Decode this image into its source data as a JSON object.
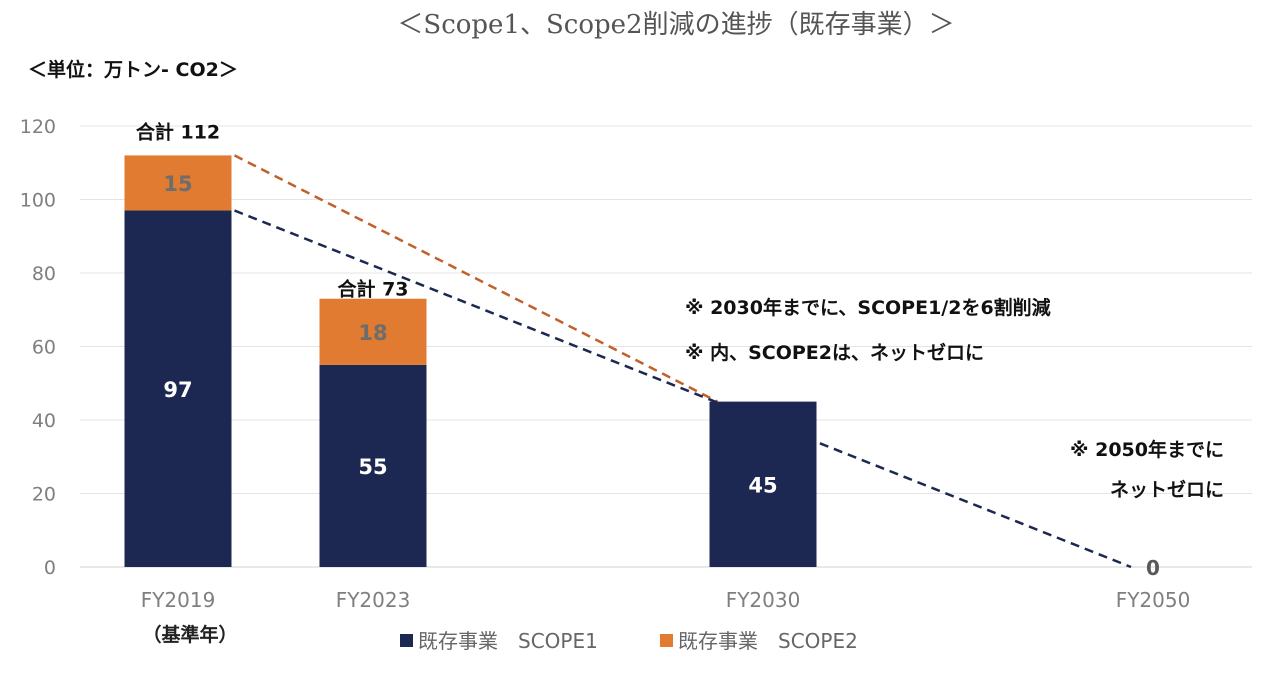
{
  "chart_data": {
    "type": "bar",
    "stacked": true,
    "title": "＜Scope1、Scope2削減の進捗（既存事業）＞",
    "unit_label": "＜単位：万トン- CO2＞",
    "categories": [
      "FY2019",
      "FY2023",
      "FY2030",
      "FY2050"
    ],
    "category_sublabels": [
      "（基準年）",
      "",
      "",
      ""
    ],
    "series": [
      {
        "name": "既存事業　SCOPE1",
        "color": "#1c2851",
        "values": [
          97,
          55,
          45,
          0
        ]
      },
      {
        "name": "既存事業　SCOPE2",
        "color": "#e07b31",
        "values": [
          15,
          18,
          0,
          0
        ]
      }
    ],
    "data_labels": {
      "scope1": [
        "97",
        "55",
        "45",
        "0"
      ],
      "scope2": [
        "15",
        "18",
        "",
        ""
      ]
    },
    "totals": [
      "合計 112",
      "合計 73",
      "",
      ""
    ],
    "ylim": [
      0,
      120
    ],
    "yticks": [
      0,
      20,
      40,
      60,
      80,
      100,
      120
    ],
    "grid": true,
    "legend_position": "bottom",
    "trend_lines": [
      {
        "color": "#c0602a",
        "style": "dashed",
        "from": {
          "x": "FY2019",
          "y": 112
        },
        "to": {
          "x": "FY2030",
          "y": 45
        }
      },
      {
        "color": "#1c2851",
        "style": "dashed",
        "from": {
          "x": "FY2019",
          "y": 97
        },
        "to": {
          "x": "FY2050",
          "y": 0
        }
      }
    ],
    "annotations": [
      "※ 2030年までに、SCOPE1/2を6割削減",
      "※ 内、SCOPE2は、ネットゼロに",
      "※ 2050年までに",
      "ネットゼロに"
    ]
  }
}
